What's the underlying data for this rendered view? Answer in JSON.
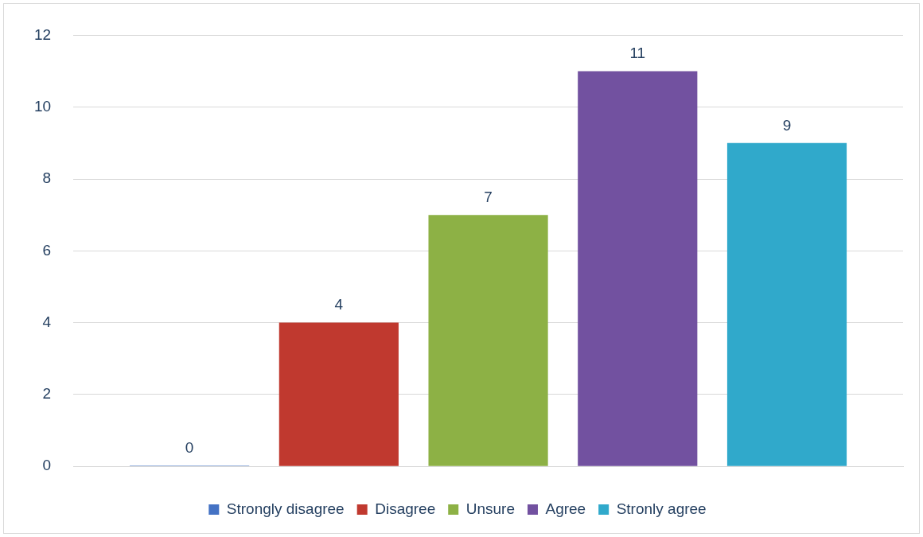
{
  "chart_data": {
    "type": "bar",
    "categories": [
      null
    ],
    "series": [
      {
        "name": "Strongly disagree",
        "color": "#4472c4",
        "values": [
          0
        ]
      },
      {
        "name": "Disagree",
        "color": "#c0392f",
        "values": [
          4
        ]
      },
      {
        "name": "Unsure",
        "color": "#8db145",
        "values": [
          7
        ]
      },
      {
        "name": "Agree",
        "color": "#7251a0",
        "values": [
          11
        ]
      },
      {
        "name": "Stronly agree",
        "color": "#30a9cb",
        "values": [
          9
        ]
      }
    ],
    "ylim": [
      0,
      12
    ],
    "yticks": [
      0,
      2,
      4,
      6,
      8,
      10,
      12
    ],
    "grid": "y",
    "legend": "bottom",
    "data_labels": true
  }
}
